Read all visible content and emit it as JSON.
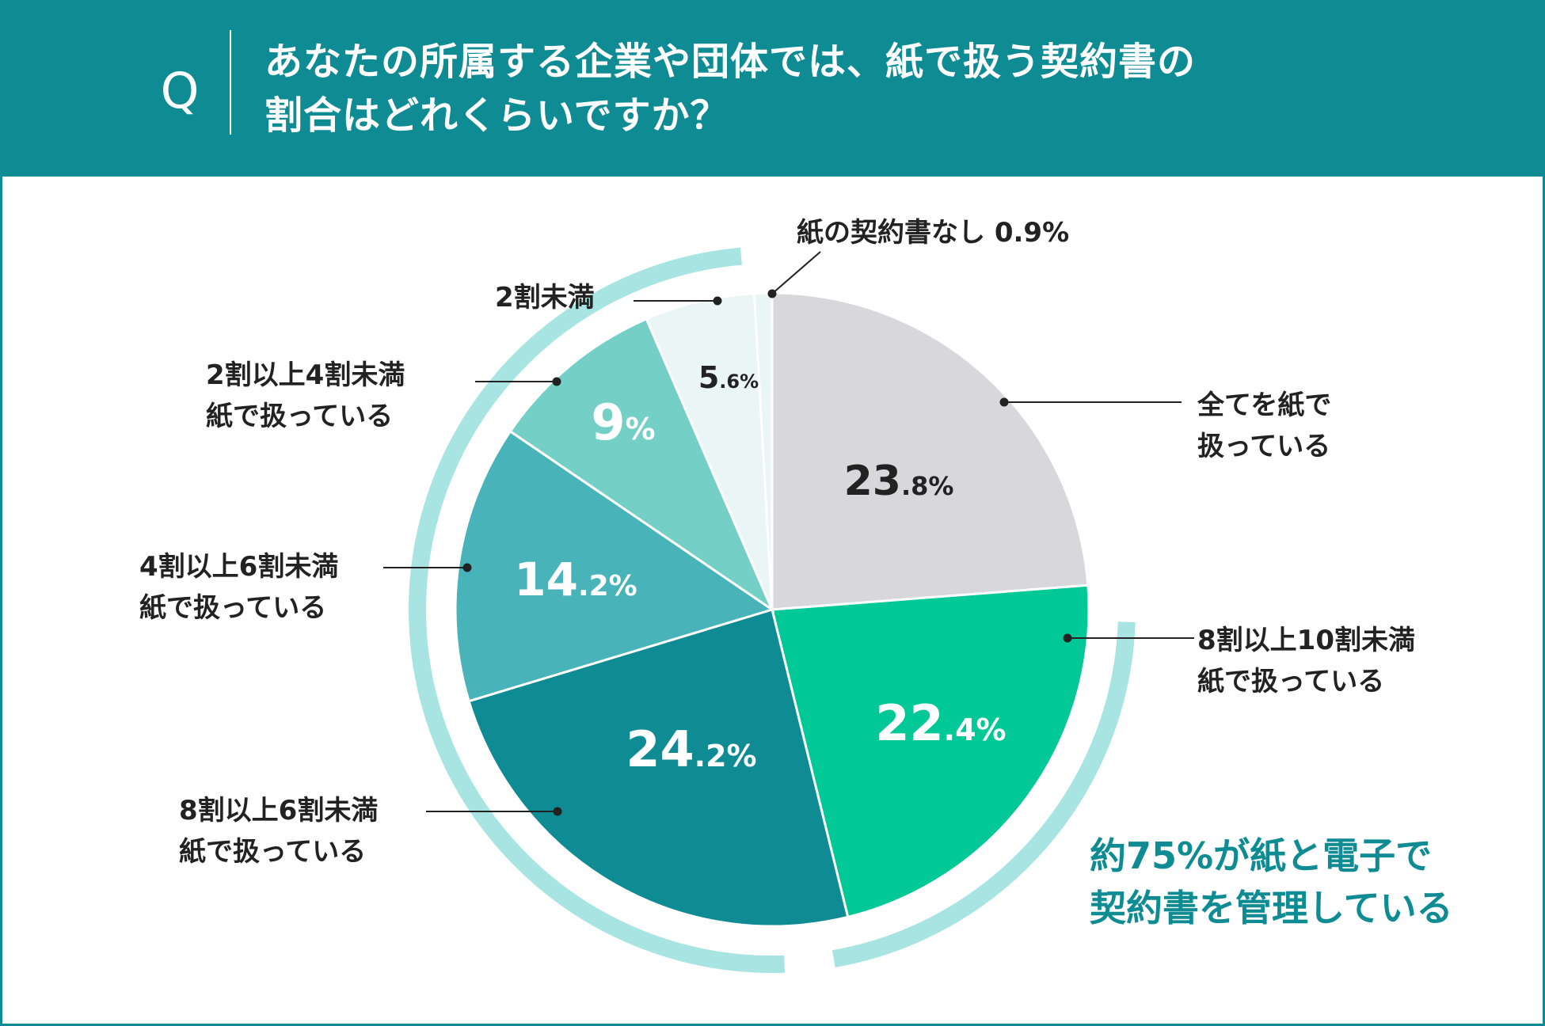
{
  "header": {
    "q_mark": "Q",
    "title": "あなたの所属する企業や団体では、紙で扱う契約書の\n割合はどれくらいですか？"
  },
  "chart_data": {
    "type": "pie",
    "title": "あなたの所属する企業や団体では、紙で扱う契約書の割合はどれくらいですか？",
    "unit": "%",
    "start": "12 o'clock, clockwise",
    "slices": [
      {
        "label": "全てを紙で\n扱っている",
        "value": 23.8,
        "display_int": "23",
        "display_dec": ".8",
        "color": "#d7d7dc",
        "value_color": "#222222"
      },
      {
        "label": "8割以上10割未満\n紙で扱っている",
        "value": 22.4,
        "display_int": "22",
        "display_dec": ".4",
        "color": "#00c896",
        "value_color": "#ffffff"
      },
      {
        "label": "8割以上6割未満\n紙で扱っている",
        "value": 24.2,
        "display_int": "24",
        "display_dec": ".2",
        "color": "#0e8b93",
        "value_color": "#ffffff"
      },
      {
        "label": "4割以上6割未満\n紙で扱っている",
        "value": 14.2,
        "display_int": "14",
        "display_dec": ".2",
        "color": "#49b3ba",
        "value_color": "#ffffff"
      },
      {
        "label": "2割以上4割未満\n紙で扱っている",
        "value": 9,
        "display_int": "9",
        "display_dec": "",
        "color": "#74cfc7",
        "value_color": "#ffffff"
      },
      {
        "label": "2割未満",
        "value": 5.6,
        "display_int": "5",
        "display_dec": ".6",
        "color": "#eaf5f6",
        "value_color": "#222222"
      },
      {
        "label": "紙の契約書なし 0.9%",
        "value": 0.9,
        "display_int": "",
        "display_dec": "",
        "color": "#eaf5f6",
        "value_color": "#222222"
      }
    ],
    "percent_sign": "%",
    "highlight_arc_color": "#a8e5e2",
    "callout": "約75%が紙と電子で\n契約書を管理している"
  }
}
